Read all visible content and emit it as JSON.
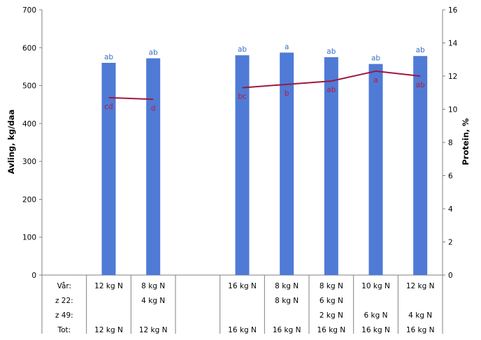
{
  "chart_data": {
    "type": "bar",
    "y_left": {
      "label": "Avling, kg/daa",
      "lim": [
        0,
        700
      ],
      "ticks": [
        "0",
        "100",
        "200",
        "300",
        "400",
        "500",
        "600",
        "700"
      ]
    },
    "y_right": {
      "label": "Protein, %",
      "lim": [
        0,
        16
      ],
      "ticks": [
        "0",
        "2",
        "4",
        "6",
        "8",
        "10",
        "12",
        "14",
        "16"
      ]
    },
    "categories": [
      "g1",
      "g2",
      "g3",
      "g4",
      "g5",
      "g6",
      "g7",
      "g8"
    ],
    "series": [
      {
        "kind": "bar",
        "axis": "left",
        "values": [
          560,
          572,
          null,
          580,
          587,
          575,
          557,
          578
        ],
        "labels": [
          "ab",
          "ab",
          "",
          "ab",
          "a",
          "ab",
          "ab",
          "ab"
        ]
      },
      {
        "kind": "line",
        "axis": "right",
        "values": [
          10.7,
          10.6,
          null,
          11.3,
          11.5,
          11.7,
          12.3,
          12.0
        ],
        "labels": [
          "cd",
          "d",
          "",
          "bc",
          "b",
          "ab",
          "a",
          "ab"
        ]
      }
    ],
    "table": {
      "row_labels": [
        "Vår:",
        "z 22:",
        "z 49:",
        "Tot:"
      ],
      "cells": [
        [
          "12 kg N",
          "8 kg N",
          "",
          "16 kg N",
          "8 kg N",
          "8 kg N",
          "10 kg N",
          "12 kg N"
        ],
        [
          "",
          "4 kg N",
          "",
          "",
          "8 kg N",
          "6 kg N",
          "",
          ""
        ],
        [
          "",
          "",
          "",
          "",
          "",
          "2 kg N",
          "6 kg N",
          "4 kg N"
        ],
        [
          "12 kg N",
          "12 kg N",
          "",
          "16 kg N",
          "16 kg N",
          "16 kg N",
          "16 kg N",
          "16 kg N"
        ]
      ]
    },
    "colors": {
      "bar": "#4F7BD6",
      "line": "#A0173C",
      "bar_label": "#3A6FC4",
      "line_label": "#C0143C"
    },
    "grid": false
  }
}
